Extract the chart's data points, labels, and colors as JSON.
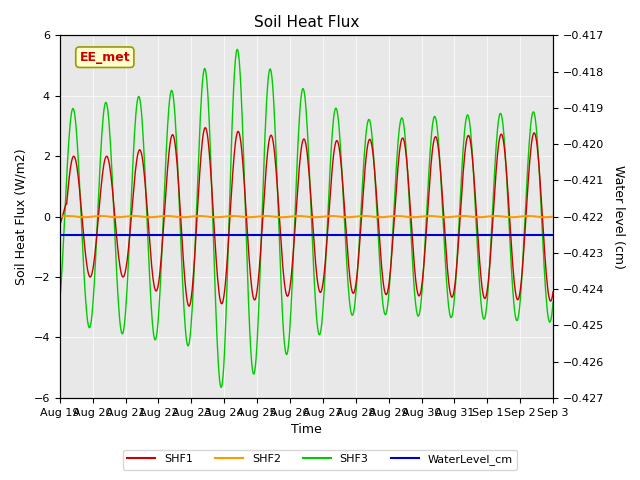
{
  "title": "Soil Heat Flux",
  "ylabel_left": "Soil Heat Flux (W/m2)",
  "ylabel_right": "Water level (cm)",
  "xlabel": "Time",
  "ylim_left": [
    -6,
    6
  ],
  "ylim_right": [
    -0.427,
    -0.417
  ],
  "annotation_text": "EE_met",
  "plot_bg_color": "#e8e8e8",
  "shf1_color": "#cc0000",
  "shf2_color": "#ff9900",
  "shf3_color": "#00cc00",
  "water_color": "#0000cc",
  "legend_labels": [
    "SHF1",
    "SHF2",
    "SHF3",
    "WaterLevel_cm"
  ],
  "x_tick_labels": [
    "Aug 19",
    "Aug 20",
    "Aug 21",
    "Aug 22",
    "Aug 23",
    "Aug 24",
    "Aug 25",
    "Aug 26",
    "Aug 27",
    "Aug 28",
    "Aug 29",
    "Aug 30",
    "Aug 31",
    "Sep 1",
    "Sep 2",
    "Sep 3"
  ],
  "yticks_left": [
    -6,
    -4,
    -2,
    0,
    2,
    4,
    6
  ],
  "yticks_right": [
    -0.427,
    -0.426,
    -0.425,
    -0.424,
    -0.423,
    -0.422,
    -0.421,
    -0.42,
    -0.419,
    -0.418,
    -0.417
  ],
  "water_level_value": -0.4225,
  "n_days": 15
}
